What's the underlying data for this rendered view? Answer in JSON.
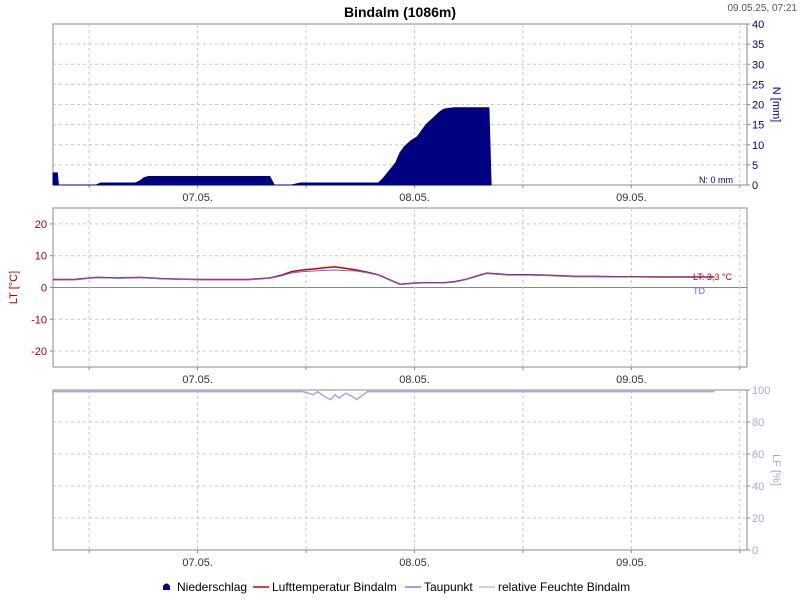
{
  "title": "Bindalm (1086m)",
  "timestamp": "09.05.25, 07:21",
  "legend": [
    {
      "label": "Niederschlag",
      "color": "#000080",
      "symbol": "area-icon"
    },
    {
      "label": "Lufttemperatur Bindalm",
      "color": "#cc0000",
      "symbol": "line"
    },
    {
      "label": "Taupunkt",
      "color": "#8080e0",
      "symbol": "line"
    },
    {
      "label": "relative Feuchte Bindalm",
      "color": "#c0c0c0",
      "symbol": "line"
    }
  ],
  "colors": {
    "precip": "#000080",
    "temp": "#cc0000",
    "dew": "#6666dd",
    "hum": "#a8a8d8"
  },
  "chart_data": [
    {
      "type": "area",
      "name": "precipitation",
      "ylabel": "N [mm]",
      "ylim": [
        0,
        40
      ],
      "yticks": [
        0,
        5,
        10,
        15,
        20,
        25,
        30,
        35,
        40
      ],
      "xlim": [
        0,
        3.2
      ],
      "xticks": [
        {
          "x": 0.667,
          "label": "07.05."
        },
        {
          "x": 1.667,
          "label": "08.05."
        },
        {
          "x": 2.667,
          "label": "09.05."
        }
      ],
      "current_label": "N: 0 mm",
      "series": [
        {
          "name": "Niederschlag",
          "x": [
            0,
            0.01,
            0.02,
            0.025,
            0.2,
            0.22,
            0.38,
            0.4,
            0.42,
            0.44,
            0.46,
            1.0,
            1.02,
            1.1,
            1.14,
            1.5,
            1.52,
            1.55,
            1.58,
            1.6,
            1.62,
            1.65,
            1.68,
            1.7,
            1.72,
            1.75,
            1.78,
            1.8,
            1.82,
            1.85,
            1.88,
            1.9,
            1.92,
            1.95,
            2.0,
            2.01,
            2.02
          ],
          "y": [
            3,
            3,
            3,
            0,
            0,
            0.5,
            0.5,
            1,
            1.8,
            2.1,
            2.1,
            2.1,
            0,
            0,
            0.5,
            0.5,
            1.5,
            3.5,
            5.5,
            8,
            9.5,
            11,
            12,
            13.5,
            15,
            16.5,
            18,
            18.8,
            19,
            19.2,
            19.2,
            19.2,
            19.2,
            19.2,
            19.2,
            19.2,
            0
          ]
        }
      ]
    },
    {
      "type": "line",
      "name": "temperature",
      "ylabel": "LT [°C]",
      "ylim": [
        -25,
        25
      ],
      "yticks": [
        -20,
        -10,
        0,
        10,
        20
      ],
      "xlim": [
        0,
        3.2
      ],
      "xticks": [
        {
          "x": 0.667,
          "label": "07.05."
        },
        {
          "x": 1.667,
          "label": "08.05."
        },
        {
          "x": 2.667,
          "label": "09.05."
        }
      ],
      "current_labels": [
        "LT: 3,3 °C",
        "TD"
      ],
      "series": [
        {
          "name": "Lufttemperatur Bindalm",
          "x": [
            0,
            0.1,
            0.2,
            0.3,
            0.4,
            0.5,
            0.6,
            0.7,
            0.8,
            0.9,
            1.0,
            1.05,
            1.1,
            1.15,
            1.2,
            1.25,
            1.3,
            1.35,
            1.4,
            1.45,
            1.5,
            1.55,
            1.6,
            1.65,
            1.7,
            1.75,
            1.8,
            1.85,
            1.9,
            1.95,
            2.0,
            2.1,
            2.2,
            2.3,
            2.4,
            2.5,
            2.6,
            2.7,
            2.8,
            2.9,
            3.0,
            3.05
          ],
          "y": [
            2.5,
            2.5,
            3.2,
            3.0,
            3.2,
            2.8,
            2.6,
            2.5,
            2.5,
            2.5,
            3.0,
            3.8,
            5.0,
            5.5,
            5.8,
            6.2,
            6.5,
            6.0,
            5.5,
            4.8,
            4.0,
            2.5,
            1.0,
            1.3,
            1.5,
            1.5,
            1.5,
            1.8,
            2.5,
            3.5,
            4.5,
            4.0,
            4.0,
            3.8,
            3.5,
            3.5,
            3.4,
            3.4,
            3.3,
            3.3,
            3.3,
            3.3
          ]
        },
        {
          "name": "Taupunkt",
          "x": [
            0,
            0.1,
            0.2,
            0.3,
            0.4,
            0.5,
            0.6,
            0.7,
            0.8,
            0.9,
            1.0,
            1.05,
            1.1,
            1.15,
            1.2,
            1.25,
            1.3,
            1.35,
            1.4,
            1.45,
            1.5,
            1.55,
            1.6,
            1.65,
            1.7,
            1.75,
            1.8,
            1.85,
            1.9,
            1.95,
            2.0,
            2.1,
            2.2,
            2.3,
            2.4,
            2.5,
            2.6,
            2.7,
            2.8,
            2.9,
            3.0,
            3.05
          ],
          "y": [
            2.4,
            2.4,
            3.1,
            2.9,
            3.1,
            2.7,
            2.5,
            2.4,
            2.4,
            2.4,
            2.9,
            3.6,
            4.6,
            5.0,
            5.2,
            5.4,
            5.5,
            5.3,
            5.2,
            4.6,
            3.9,
            2.4,
            0.9,
            1.2,
            1.4,
            1.4,
            1.4,
            1.7,
            2.4,
            3.4,
            4.4,
            3.9,
            3.9,
            3.7,
            3.4,
            3.4,
            3.3,
            3.3,
            3.2,
            3.2,
            3.2,
            3.2
          ]
        }
      ]
    },
    {
      "type": "line",
      "name": "humidity",
      "ylabel": "LF [%]",
      "ylim": [
        0,
        100
      ],
      "yticks": [
        0,
        20,
        40,
        60,
        80,
        100
      ],
      "xlim": [
        0,
        3.2
      ],
      "xticks": [
        {
          "x": 0.667,
          "label": "07.05."
        },
        {
          "x": 1.667,
          "label": "08.05."
        },
        {
          "x": 2.667,
          "label": "09.05."
        }
      ],
      "series": [
        {
          "name": "relative Feuchte Bindalm",
          "x": [
            0,
            0.5,
            1.0,
            1.1,
            1.15,
            1.18,
            1.2,
            1.22,
            1.25,
            1.28,
            1.3,
            1.32,
            1.35,
            1.38,
            1.4,
            1.42,
            1.45,
            1.5,
            2.0,
            2.5,
            3.0,
            3.05
          ],
          "y": [
            99,
            99,
            99,
            99,
            99,
            98,
            97,
            99,
            96,
            94,
            97,
            95,
            98,
            96,
            94,
            96,
            99,
            99,
            99,
            99,
            99,
            99
          ]
        }
      ]
    }
  ]
}
